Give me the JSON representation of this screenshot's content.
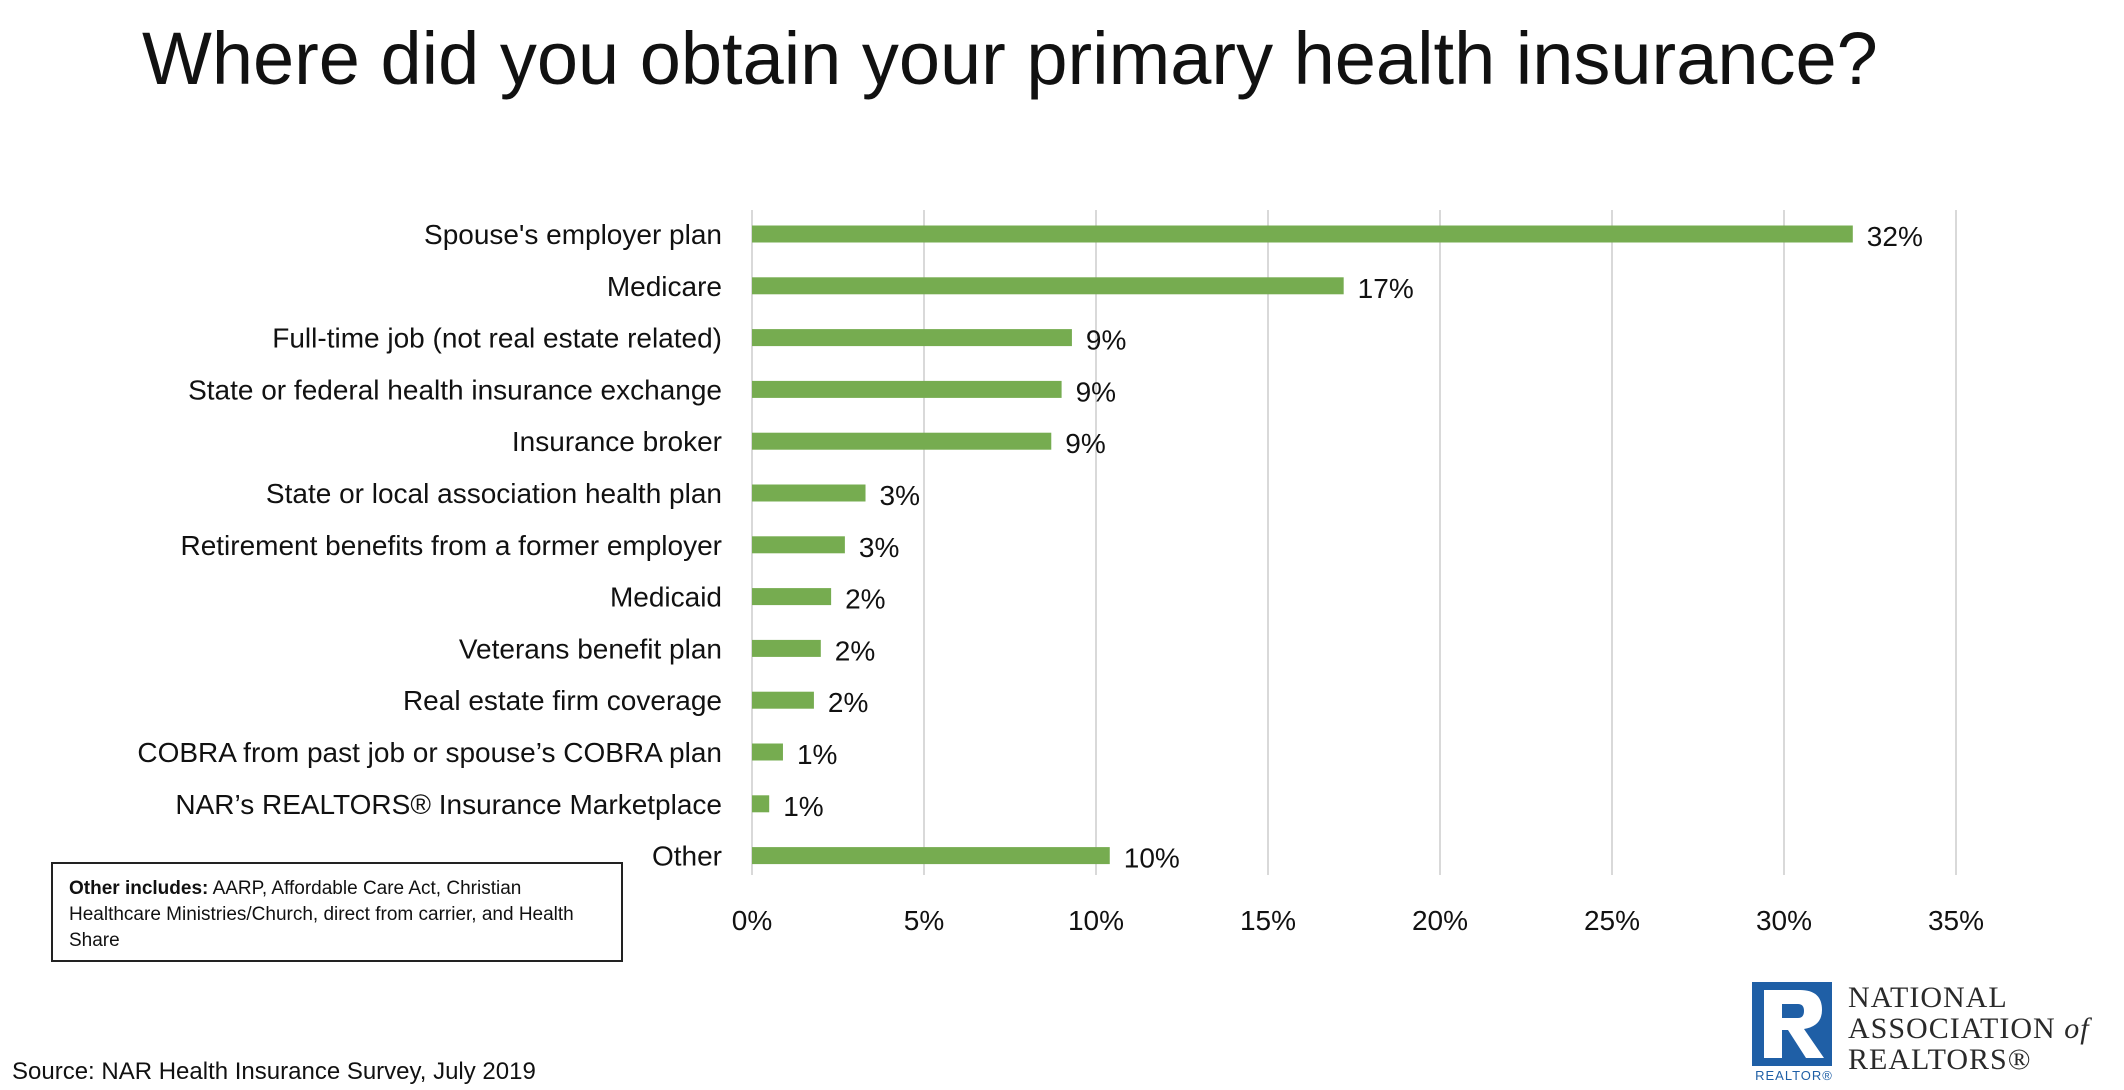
{
  "page": {
    "title": "Where did you obtain your primary health insurance?",
    "source": "Source: NAR Health Insurance Survey, July 2019"
  },
  "note": {
    "label": "Other includes:",
    "text": " AARP, Affordable Care Act, Christian Healthcare Ministries/Church, direct from carrier, and Health Share"
  },
  "logo": {
    "line1": "NATIONAL",
    "line2": "ASSOCIATION",
    "line2_of": "of",
    "line3": "REALTORS®",
    "tag": "REALTOR®"
  },
  "colors": {
    "bar": "#76ac50",
    "grid": "#d9d9d9",
    "logo_blue": "#1f5fa6"
  },
  "chart_data": {
    "type": "bar",
    "orientation": "horizontal",
    "title": "Where did you obtain your primary health insurance?",
    "categories": [
      "Spouse's employer plan",
      "Medicare",
      "Full-time job (not real estate related)",
      "State or federal health insurance exchange",
      "Insurance broker",
      "State or local association health plan",
      "Retirement benefits from a former employer",
      "Medicaid",
      "Veterans benefit plan",
      "Real estate firm coverage",
      "COBRA from past job or spouse’s COBRA plan",
      "NAR’s REALTORS® Insurance Marketplace",
      "Other"
    ],
    "values": [
      32,
      17.2,
      9.3,
      9.0,
      8.7,
      3.3,
      2.7,
      2.3,
      2.0,
      1.8,
      0.9,
      0.5,
      10.4
    ],
    "value_labels": [
      "32%",
      "17%",
      "9%",
      "9%",
      "9%",
      "3%",
      "3%",
      "2%",
      "2%",
      "2%",
      "1%",
      "1%",
      "10%"
    ],
    "xlim": [
      0,
      35
    ],
    "xticks": [
      0,
      5,
      10,
      15,
      20,
      25,
      30,
      35
    ],
    "xtick_labels": [
      "0%",
      "5%",
      "10%",
      "15%",
      "20%",
      "25%",
      "30%",
      "35%"
    ],
    "grid": true,
    "legend": "none"
  }
}
